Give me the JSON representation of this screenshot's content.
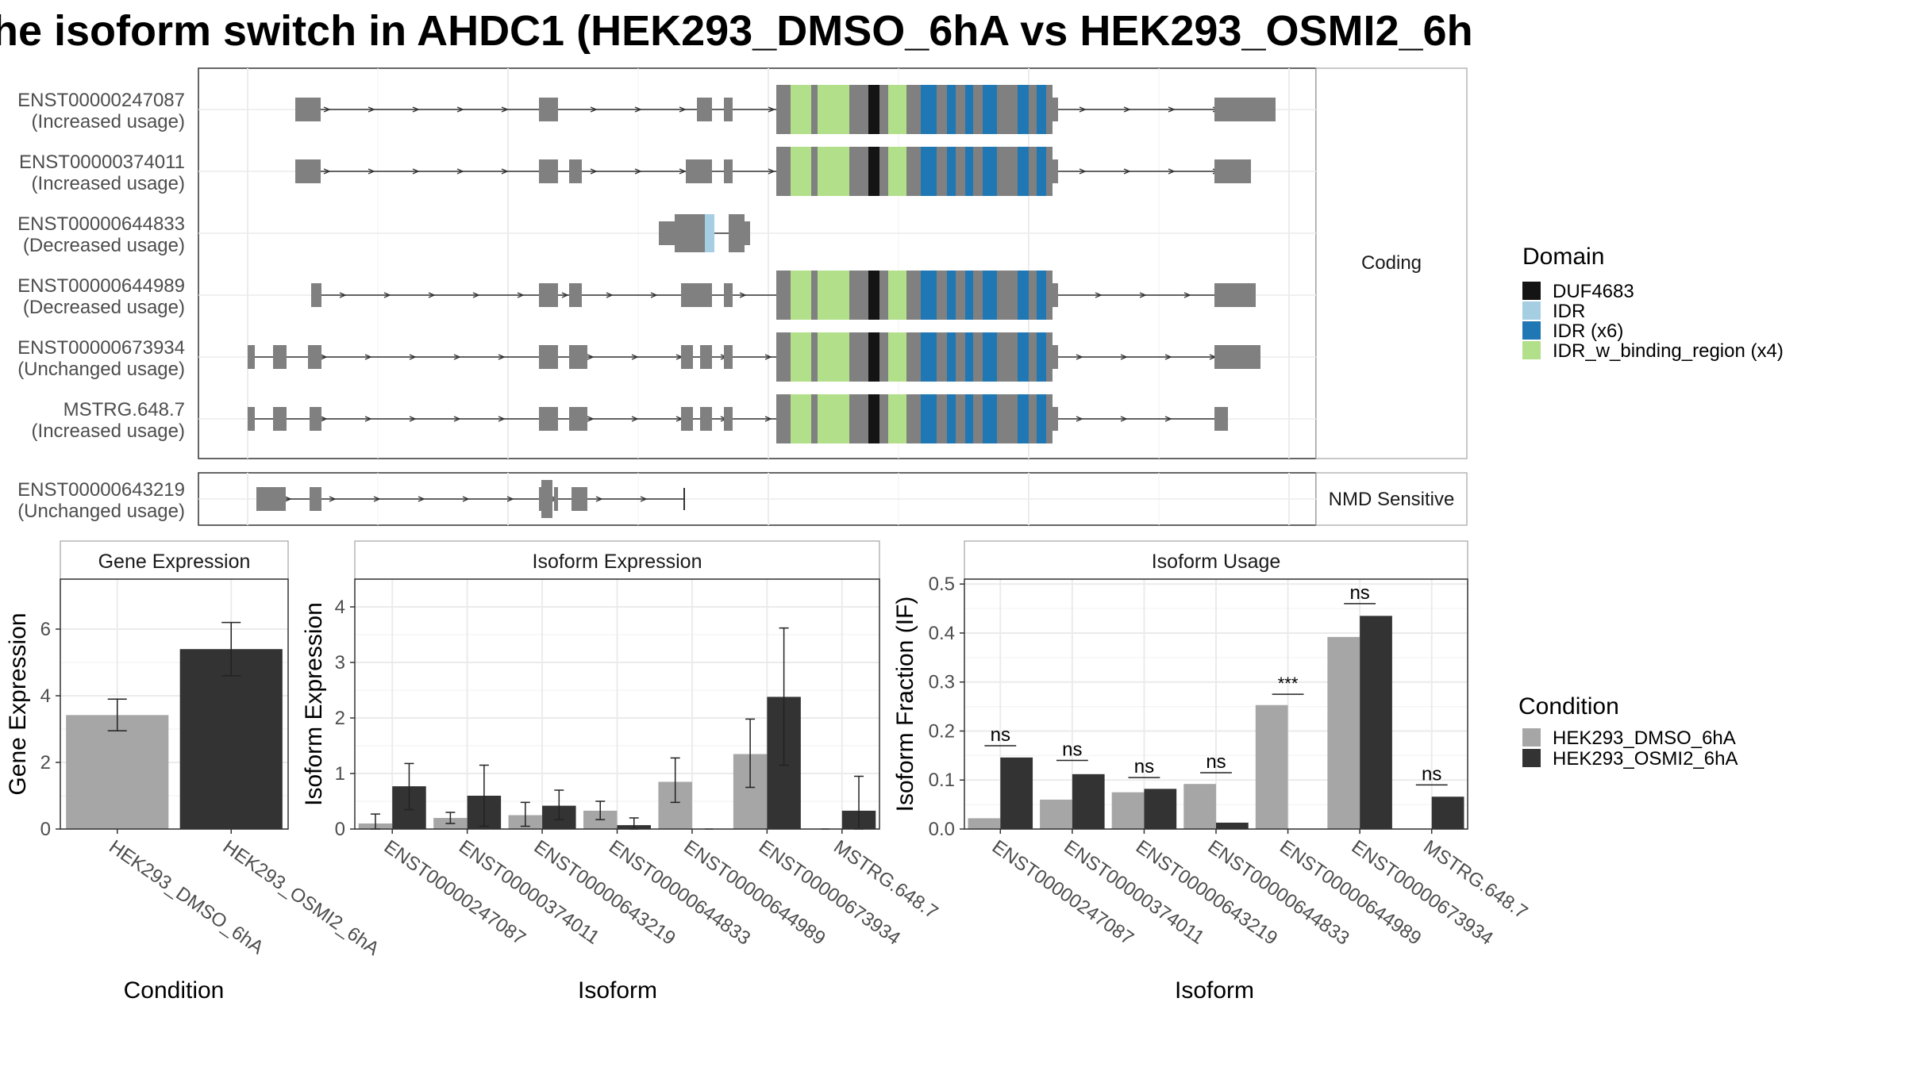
{
  "title": "he isoform switch in AHDC1 (HEK293_DMSO_6hA vs HEK293_OSMI2_6h",
  "colors": {
    "exon": "#808080",
    "DUF4683": "#141414",
    "IDR": "#a6cee3",
    "IDR_x6": "#1f78b4",
    "IDR_w_binding_region": "#b2df8a",
    "condition1": "#a6a6a6",
    "condition2": "#333333"
  },
  "transcripts": {
    "coding_panel_label": "Coding",
    "nmd_panel_label": "NMD Sensitive",
    "coding": [
      {
        "id": "ENST00000247087",
        "usage": "(Increased usage)"
      },
      {
        "id": "ENST00000374011",
        "usage": "(Increased usage)"
      },
      {
        "id": "ENST00000644833",
        "usage": "(Decreased usage)"
      },
      {
        "id": "ENST00000644989",
        "usage": "(Decreased usage)"
      },
      {
        "id": "ENST00000673934",
        "usage": "(Unchanged usage)"
      },
      {
        "id": "MSTRG.648.7",
        "usage": "(Increased usage)"
      }
    ],
    "nmd": [
      {
        "id": "ENST00000643219",
        "usage": "(Unchanged usage)"
      }
    ]
  },
  "domain_legend": {
    "title": "Domain",
    "items": [
      "DUF4683",
      "IDR",
      "IDR (x6)",
      "IDR_w_binding_region (x4)"
    ]
  },
  "condition_legend": {
    "title": "Condition",
    "items": [
      "HEK293_DMSO_6hA",
      "HEK293_OSMI2_6hA"
    ]
  },
  "chart_data": [
    {
      "type": "bar",
      "title": "Gene Expression",
      "xlabel": "Condition",
      "ylabel": "Gene Expression",
      "ylim": [
        0,
        7.5
      ],
      "yticks": [
        0,
        2,
        4,
        6
      ],
      "categories": [
        "HEK293_DMSO_6hA",
        "HEK293_OSMI2_6hA"
      ],
      "values": [
        3.42,
        5.4
      ],
      "error": [
        [
          2.95,
          3.9
        ],
        [
          4.6,
          6.2
        ]
      ]
    },
    {
      "type": "bar",
      "title": "Isoform Expression",
      "xlabel": "Isoform",
      "ylabel": "Isoform Expression",
      "ylim": [
        0,
        4.5
      ],
      "yticks": [
        0,
        1,
        2,
        3,
        4
      ],
      "categories": [
        "ENST00000247087",
        "ENST00000374011",
        "ENST00000643219",
        "ENST00000644833",
        "ENST00000644989",
        "ENST00000673934",
        "MSTRG.648.7"
      ],
      "series": [
        {
          "name": "HEK293_DMSO_6hA",
          "values": [
            0.1,
            0.2,
            0.25,
            0.33,
            0.85,
            1.35,
            0.0
          ],
          "error": [
            [
              0.0,
              0.27
            ],
            [
              0.1,
              0.3
            ],
            [
              0.05,
              0.48
            ],
            [
              0.17,
              0.5
            ],
            [
              0.48,
              1.28
            ],
            [
              0.75,
              1.98
            ],
            null
          ]
        },
        {
          "name": "HEK293_OSMI2_6hA",
          "values": [
            0.77,
            0.6,
            0.42,
            0.07,
            0.0,
            2.38,
            0.33
          ],
          "error": [
            [
              0.35,
              1.18
            ],
            [
              0.05,
              1.15
            ],
            [
              0.17,
              0.7
            ],
            [
              0.0,
              0.2
            ],
            null,
            [
              1.15,
              3.62
            ],
            [
              0.0,
              0.95
            ]
          ]
        }
      ]
    },
    {
      "type": "bar",
      "title": "Isoform Usage",
      "xlabel": "Isoform",
      "ylabel": "Isoform Fraction (IF)",
      "ylim": [
        0,
        0.51
      ],
      "yticks": [
        0.0,
        0.1,
        0.2,
        0.3,
        0.4,
        0.5
      ],
      "ytick_labels": [
        "0.0",
        "0.1",
        "0.2",
        "0.3",
        "0.4",
        "0.5"
      ],
      "categories": [
        "ENST00000247087",
        "ENST00000374011",
        "ENST00000643219",
        "ENST00000644833",
        "ENST00000644989",
        "ENST00000673934",
        "MSTRG.648.7"
      ],
      "series": [
        {
          "name": "HEK293_DMSO_6hA",
          "values": [
            0.022,
            0.06,
            0.075,
            0.092,
            0.253,
            0.392,
            0.0
          ]
        },
        {
          "name": "HEK293_OSMI2_6hA",
          "values": [
            0.146,
            0.112,
            0.082,
            0.013,
            0.0,
            0.435,
            0.066
          ]
        }
      ],
      "significance": [
        "ns",
        "ns",
        "ns",
        "ns",
        "***",
        "ns",
        "ns"
      ],
      "significance_y": [
        0.17,
        0.14,
        0.105,
        0.115,
        0.275,
        0.46,
        0.09
      ]
    }
  ]
}
